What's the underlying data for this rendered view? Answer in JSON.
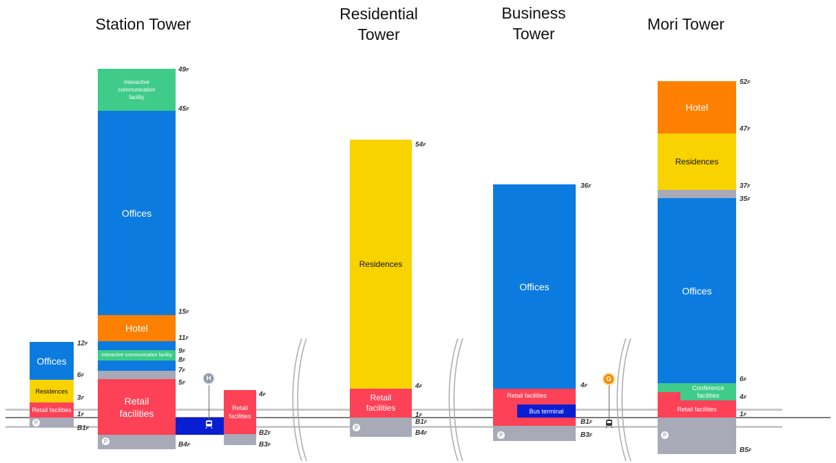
{
  "titles": {
    "station": "Station Tower",
    "residential": "Residential\nTower",
    "business": "Business\nTower",
    "mori": "Mori Tower"
  },
  "labels": {
    "offices": "Offices",
    "residences": "Residences",
    "retail_facilities": "Retail facilities",
    "retail_facilities_two_line": "Retail\nfacilities",
    "hotel": "Hotel",
    "interactive_comm_3line": "Interactive\ncommunication\nfacility",
    "interactive_comm_line": "Interactive communication facility",
    "bus_terminal": "Bus terminal",
    "conference": "Conference\nfacilities"
  },
  "floors": {
    "f12": "12",
    "f6": "6",
    "f3": "3",
    "f1": "1",
    "b1": "B1",
    "f49": "49",
    "f45": "45",
    "f15": "15",
    "f11": "11",
    "f9": "9",
    "f8": "8",
    "f7": "7",
    "f5": "5",
    "b2": "B2",
    "b4": "B4",
    "f4": "4",
    "b3": "B3",
    "f54": "54",
    "f36": "36",
    "b5": "B5",
    "f52": "52",
    "f47": "47",
    "f37": "37",
    "f35": "35",
    "suffix": "F"
  },
  "icons": {
    "parking": "P",
    "station_h": "H",
    "station_g": "G",
    "train": "train-icon"
  },
  "colors": {
    "offices": "#0c7be0",
    "residences": "#f8d300",
    "retail": "#fd4157",
    "hotel": "#fd8000",
    "interactive": "#3fcb8a",
    "conference": "#3fcb8a",
    "parking": "#a8aab8",
    "bus": "#0a1ed1",
    "station_h": "#8c97a4",
    "station_g": "#f08c00"
  }
}
